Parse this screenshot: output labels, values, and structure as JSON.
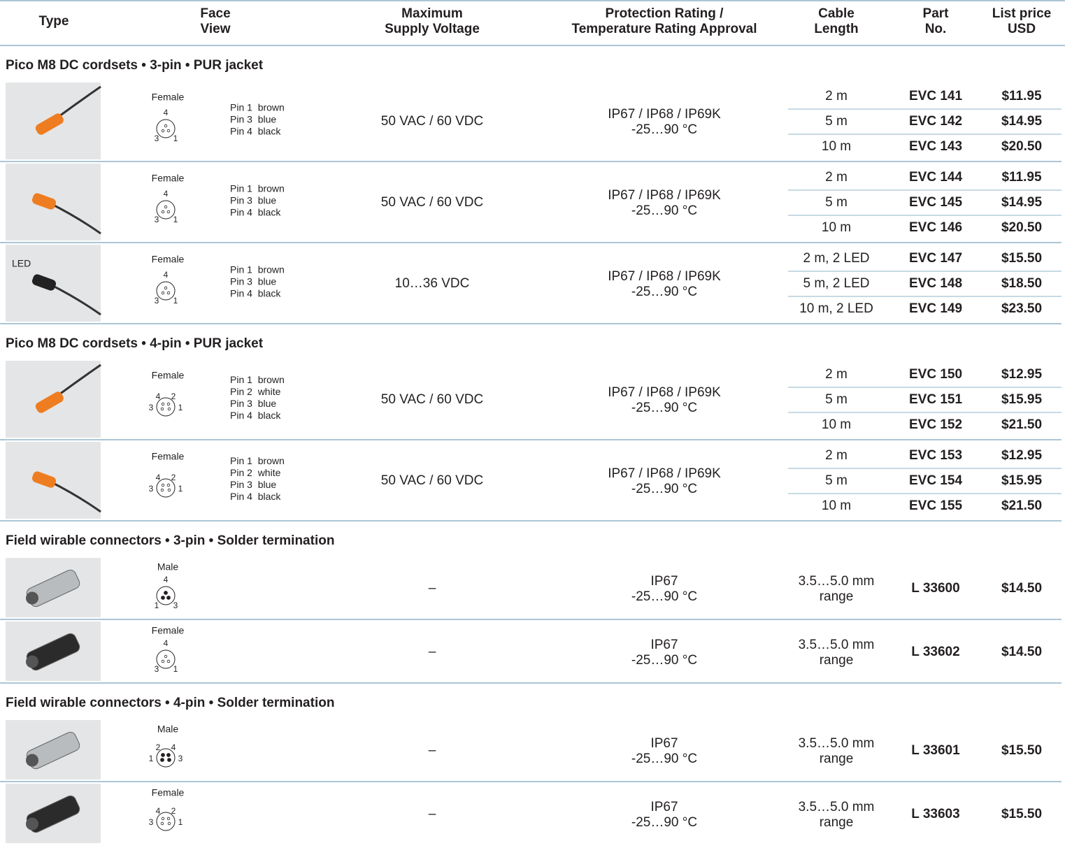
{
  "header": {
    "columns": [
      [
        "Type"
      ],
      [
        "Face",
        "View"
      ],
      [
        "Maximum",
        "Supply Voltage"
      ],
      [
        "Protection Rating /",
        "Temperature Rating Approval"
      ],
      [
        "Cable",
        "Length"
      ],
      [
        "Part",
        "No."
      ],
      [
        "List price",
        "USD"
      ]
    ]
  },
  "sections": [
    {
      "title": "Pico M8 DC cordsets • 3-pin • PUR jacket",
      "products": [
        {
          "face": {
            "gender": "Female",
            "pins": [
              "4",
              "3",
              "1"
            ]
          },
          "wiring": [
            "Pin 1  brown",
            "Pin 3  blue",
            "Pin 4  black"
          ],
          "voltage": "50 VAC / 60 VDC",
          "rating": [
            "IP67 / IP68 / IP69K",
            "-25…90 °C"
          ],
          "variants": [
            {
              "length": [
                "2 m"
              ],
              "part": "EVC 141",
              "price": "$11.95"
            },
            {
              "length": [
                "5 m"
              ],
              "part": "EVC 142",
              "price": "$14.95"
            },
            {
              "length": [
                "10 m"
              ],
              "part": "EVC 143",
              "price": "$20.50"
            }
          ]
        },
        {
          "face": {
            "gender": "Female",
            "pins": [
              "4",
              "3",
              "1"
            ]
          },
          "wiring": [
            "Pin 1  brown",
            "Pin 3  blue",
            "Pin 4  black"
          ],
          "voltage": "50 VAC / 60 VDC",
          "rating": [
            "IP67 / IP68 / IP69K",
            "-25…90 °C"
          ],
          "variants": [
            {
              "length": [
                "2 m"
              ],
              "part": "EVC 144",
              "price": "$11.95"
            },
            {
              "length": [
                "5 m"
              ],
              "part": "EVC 145",
              "price": "$14.95"
            },
            {
              "length": [
                "10 m"
              ],
              "part": "EVC 146",
              "price": "$20.50"
            }
          ]
        },
        {
          "type_label": "LED",
          "face": {
            "gender": "Female",
            "pins": [
              "4",
              "3",
              "1"
            ]
          },
          "wiring": [
            "Pin 1  brown",
            "Pin 3  blue",
            "Pin 4  black"
          ],
          "voltage": "10…36 VDC",
          "rating": [
            "IP67 / IP68 / IP69K",
            "-25…90 °C"
          ],
          "variants": [
            {
              "length": [
                "2 m, 2 LED"
              ],
              "part": "EVC 147",
              "price": "$15.50"
            },
            {
              "length": [
                "5 m, 2 LED"
              ],
              "part": "EVC 148",
              "price": "$18.50"
            },
            {
              "length": [
                "10 m, 2 LED"
              ],
              "part": "EVC 149",
              "price": "$23.50"
            }
          ]
        }
      ]
    },
    {
      "title": "Pico M8 DC cordsets • 4-pin • PUR jacket",
      "products": [
        {
          "face": {
            "gender": "Female",
            "pins": [
              "4",
              "2",
              "3",
              "1"
            ]
          },
          "wiring": [
            "Pin 1  brown",
            "Pin 2  white",
            "Pin 3  blue",
            "Pin 4  black"
          ],
          "voltage": "50 VAC / 60 VDC",
          "rating": [
            "IP67 / IP68 / IP69K",
            "-25…90 °C"
          ],
          "variants": [
            {
              "length": [
                "2 m"
              ],
              "part": "EVC 150",
              "price": "$12.95"
            },
            {
              "length": [
                "5 m"
              ],
              "part": "EVC 151",
              "price": "$15.95"
            },
            {
              "length": [
                "10 m"
              ],
              "part": "EVC 152",
              "price": "$21.50"
            }
          ]
        },
        {
          "face": {
            "gender": "Female",
            "pins": [
              "4",
              "2",
              "3",
              "1"
            ]
          },
          "wiring": [
            "Pin 1  brown",
            "Pin 2  white",
            "Pin 3  blue",
            "Pin 4  black"
          ],
          "voltage": "50 VAC / 60 VDC",
          "rating": [
            "IP67 / IP68 / IP69K",
            "-25…90 °C"
          ],
          "variants": [
            {
              "length": [
                "2 m"
              ],
              "part": "EVC 153",
              "price": "$12.95"
            },
            {
              "length": [
                "5 m"
              ],
              "part": "EVC 154",
              "price": "$15.95"
            },
            {
              "length": [
                "10 m"
              ],
              "part": "EVC 155",
              "price": "$21.50"
            }
          ]
        }
      ]
    },
    {
      "title": "Field wirable connectors • 3-pin • Solder termination",
      "products": [
        {
          "face": {
            "gender": "Male",
            "pins": [
              "4",
              "1",
              "3"
            ]
          },
          "voltage": "–",
          "rating": [
            "IP67",
            "-25…90 °C"
          ],
          "variants": [
            {
              "length": [
                "3.5…5.0 mm",
                "range"
              ],
              "part": "L 33600",
              "price": "$14.50"
            }
          ]
        },
        {
          "face": {
            "gender": "Female",
            "pins": [
              "4",
              "3",
              "1"
            ]
          },
          "voltage": "–",
          "rating": [
            "IP67",
            "-25…90 °C"
          ],
          "variants": [
            {
              "length": [
                "3.5…5.0 mm",
                "range"
              ],
              "part": "L 33602",
              "price": "$14.50"
            }
          ]
        }
      ]
    },
    {
      "title": "Field wirable connectors • 4-pin • Solder termination",
      "products": [
        {
          "face": {
            "gender": "Male",
            "pins": [
              "2",
              "4",
              "1",
              "3"
            ]
          },
          "voltage": "–",
          "rating": [
            "IP67",
            "-25…90 °C"
          ],
          "variants": [
            {
              "length": [
                "3.5…5.0 mm",
                "range"
              ],
              "part": "L 33601",
              "price": "$15.50"
            }
          ]
        },
        {
          "face": {
            "gender": "Female",
            "pins": [
              "4",
              "2",
              "3",
              "1"
            ]
          },
          "voltage": "–",
          "rating": [
            "IP67",
            "-25…90 °C"
          ],
          "variants": [
            {
              "length": [
                "3.5…5.0 mm",
                "range"
              ],
              "part": "L 33603",
              "price": "$15.50"
            }
          ]
        }
      ]
    }
  ]
}
